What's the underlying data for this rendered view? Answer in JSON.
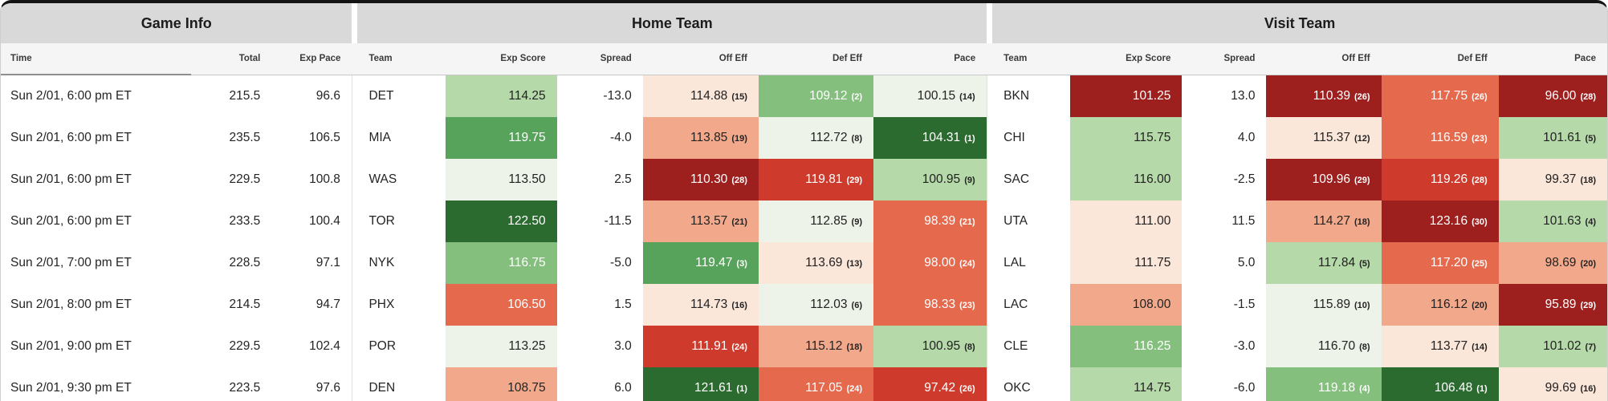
{
  "table": {
    "groups": [
      {
        "label": "Game Info"
      },
      {
        "label": "Home Team"
      },
      {
        "label": "Visit Team"
      }
    ],
    "subheaders": {
      "game": [
        "Time",
        "Total",
        "Exp Pace"
      ],
      "team": [
        "Team",
        "Exp Score",
        "Spread",
        "Off Eff",
        "Def Eff",
        "Pace"
      ]
    },
    "colors": {
      "g0": "#edf3e8",
      "g1": "#b5d9a9",
      "g2": "#85bf7e",
      "g3": "#57a35b",
      "g4": "#2c6b30",
      "r0": "#fbe6da",
      "r1": "#f2a98b",
      "r2": "#e56a4d",
      "r3": "#ce3b2d",
      "r4": "#9d1f1e",
      "header_band": "#d9d9d9",
      "subheader_band": "#f5f5f5",
      "top_bar": "#141414"
    },
    "rows": [
      {
        "time": "Sun 2/01, 6:00 pm ET",
        "total": "215.5",
        "exp_pace": "96.6",
        "home": {
          "team": "DET",
          "exp_score": {
            "value": "114.25",
            "bg": "g1",
            "text": "dark"
          },
          "spread": "-13.0",
          "off_eff": {
            "value": "114.88",
            "rank": "15",
            "bg": "r0",
            "text": "dark"
          },
          "def_eff": {
            "value": "109.12",
            "rank": "2",
            "bg": "g2",
            "text": "light"
          },
          "pace": {
            "value": "100.15",
            "rank": "14",
            "bg": "g0",
            "text": "dark"
          }
        },
        "visit": {
          "team": "BKN",
          "exp_score": {
            "value": "101.25",
            "bg": "r4",
            "text": "light"
          },
          "spread": "13.0",
          "off_eff": {
            "value": "110.39",
            "rank": "26",
            "bg": "r4",
            "text": "light"
          },
          "def_eff": {
            "value": "117.75",
            "rank": "26",
            "bg": "r2",
            "text": "light"
          },
          "pace": {
            "value": "96.00",
            "rank": "28",
            "bg": "r4",
            "text": "light"
          }
        }
      },
      {
        "time": "Sun 2/01, 6:00 pm ET",
        "total": "235.5",
        "exp_pace": "106.5",
        "home": {
          "team": "MIA",
          "exp_score": {
            "value": "119.75",
            "bg": "g3",
            "text": "light"
          },
          "spread": "-4.0",
          "off_eff": {
            "value": "113.85",
            "rank": "19",
            "bg": "r1",
            "text": "dark"
          },
          "def_eff": {
            "value": "112.72",
            "rank": "8",
            "bg": "g0",
            "text": "dark"
          },
          "pace": {
            "value": "104.31",
            "rank": "1",
            "bg": "g4",
            "text": "light"
          }
        },
        "visit": {
          "team": "CHI",
          "exp_score": {
            "value": "115.75",
            "bg": "g1",
            "text": "dark"
          },
          "spread": "4.0",
          "off_eff": {
            "value": "115.37",
            "rank": "12",
            "bg": "r0",
            "text": "dark"
          },
          "def_eff": {
            "value": "116.59",
            "rank": "23",
            "bg": "r2",
            "text": "light"
          },
          "pace": {
            "value": "101.61",
            "rank": "5",
            "bg": "g1",
            "text": "dark"
          }
        }
      },
      {
        "time": "Sun 2/01, 6:00 pm ET",
        "total": "229.5",
        "exp_pace": "100.8",
        "home": {
          "team": "WAS",
          "exp_score": {
            "value": "113.50",
            "bg": "g0",
            "text": "dark"
          },
          "spread": "2.5",
          "off_eff": {
            "value": "110.30",
            "rank": "28",
            "bg": "r4",
            "text": "light"
          },
          "def_eff": {
            "value": "119.81",
            "rank": "29",
            "bg": "r3",
            "text": "light"
          },
          "pace": {
            "value": "100.95",
            "rank": "9",
            "bg": "g1",
            "text": "dark"
          }
        },
        "visit": {
          "team": "SAC",
          "exp_score": {
            "value": "116.00",
            "bg": "g1",
            "text": "dark"
          },
          "spread": "-2.5",
          "off_eff": {
            "value": "109.96",
            "rank": "29",
            "bg": "r4",
            "text": "light"
          },
          "def_eff": {
            "value": "119.26",
            "rank": "28",
            "bg": "r3",
            "text": "light"
          },
          "pace": {
            "value": "99.37",
            "rank": "18",
            "bg": "r0",
            "text": "dark"
          }
        }
      },
      {
        "time": "Sun 2/01, 6:00 pm ET",
        "total": "233.5",
        "exp_pace": "100.4",
        "home": {
          "team": "TOR",
          "exp_score": {
            "value": "122.50",
            "bg": "g4",
            "text": "light"
          },
          "spread": "-11.5",
          "off_eff": {
            "value": "113.57",
            "rank": "21",
            "bg": "r1",
            "text": "dark"
          },
          "def_eff": {
            "value": "112.85",
            "rank": "9",
            "bg": "g0",
            "text": "dark"
          },
          "pace": {
            "value": "98.39",
            "rank": "21",
            "bg": "r2",
            "text": "light"
          }
        },
        "visit": {
          "team": "UTA",
          "exp_score": {
            "value": "111.00",
            "bg": "r0",
            "text": "dark"
          },
          "spread": "11.5",
          "off_eff": {
            "value": "114.27",
            "rank": "18",
            "bg": "r1",
            "text": "dark"
          },
          "def_eff": {
            "value": "123.16",
            "rank": "30",
            "bg": "r4",
            "text": "light"
          },
          "pace": {
            "value": "101.63",
            "rank": "4",
            "bg": "g1",
            "text": "dark"
          }
        }
      },
      {
        "time": "Sun 2/01, 7:00 pm ET",
        "total": "228.5",
        "exp_pace": "97.1",
        "home": {
          "team": "NYK",
          "exp_score": {
            "value": "116.75",
            "bg": "g2",
            "text": "light"
          },
          "spread": "-5.0",
          "off_eff": {
            "value": "119.47",
            "rank": "3",
            "bg": "g3",
            "text": "light"
          },
          "def_eff": {
            "value": "113.69",
            "rank": "13",
            "bg": "r0",
            "text": "dark"
          },
          "pace": {
            "value": "98.00",
            "rank": "24",
            "bg": "r2",
            "text": "light"
          }
        },
        "visit": {
          "team": "LAL",
          "exp_score": {
            "value": "111.75",
            "bg": "r0",
            "text": "dark"
          },
          "spread": "5.0",
          "off_eff": {
            "value": "117.84",
            "rank": "5",
            "bg": "g1",
            "text": "dark"
          },
          "def_eff": {
            "value": "117.20",
            "rank": "25",
            "bg": "r2",
            "text": "light"
          },
          "pace": {
            "value": "98.69",
            "rank": "20",
            "bg": "r1",
            "text": "dark"
          }
        }
      },
      {
        "time": "Sun 2/01, 8:00 pm ET",
        "total": "214.5",
        "exp_pace": "94.7",
        "home": {
          "team": "PHX",
          "exp_score": {
            "value": "106.50",
            "bg": "r2",
            "text": "light"
          },
          "spread": "1.5",
          "off_eff": {
            "value": "114.73",
            "rank": "16",
            "bg": "r0",
            "text": "dark"
          },
          "def_eff": {
            "value": "112.03",
            "rank": "6",
            "bg": "g0",
            "text": "dark"
          },
          "pace": {
            "value": "98.33",
            "rank": "23",
            "bg": "r2",
            "text": "light"
          }
        },
        "visit": {
          "team": "LAC",
          "exp_score": {
            "value": "108.00",
            "bg": "r1",
            "text": "dark"
          },
          "spread": "-1.5",
          "off_eff": {
            "value": "115.89",
            "rank": "10",
            "bg": "g0",
            "text": "dark"
          },
          "def_eff": {
            "value": "116.12",
            "rank": "20",
            "bg": "r1",
            "text": "dark"
          },
          "pace": {
            "value": "95.89",
            "rank": "29",
            "bg": "r4",
            "text": "light"
          }
        }
      },
      {
        "time": "Sun 2/01, 9:00 pm ET",
        "total": "229.5",
        "exp_pace": "102.4",
        "home": {
          "team": "POR",
          "exp_score": {
            "value": "113.25",
            "bg": "g0",
            "text": "dark"
          },
          "spread": "3.0",
          "off_eff": {
            "value": "111.91",
            "rank": "24",
            "bg": "r3",
            "text": "light"
          },
          "def_eff": {
            "value": "115.12",
            "rank": "18",
            "bg": "r1",
            "text": "dark"
          },
          "pace": {
            "value": "100.95",
            "rank": "8",
            "bg": "g1",
            "text": "dark"
          }
        },
        "visit": {
          "team": "CLE",
          "exp_score": {
            "value": "116.25",
            "bg": "g2",
            "text": "light"
          },
          "spread": "-3.0",
          "off_eff": {
            "value": "116.70",
            "rank": "8",
            "bg": "g0",
            "text": "dark"
          },
          "def_eff": {
            "value": "113.77",
            "rank": "14",
            "bg": "r0",
            "text": "dark"
          },
          "pace": {
            "value": "101.02",
            "rank": "7",
            "bg": "g1",
            "text": "dark"
          }
        }
      },
      {
        "time": "Sun 2/01, 9:30 pm ET",
        "total": "223.5",
        "exp_pace": "97.6",
        "home": {
          "team": "DEN",
          "exp_score": {
            "value": "108.75",
            "bg": "r1",
            "text": "dark"
          },
          "spread": "6.0",
          "off_eff": {
            "value": "121.61",
            "rank": "1",
            "bg": "g4",
            "text": "light"
          },
          "def_eff": {
            "value": "117.05",
            "rank": "24",
            "bg": "r2",
            "text": "light"
          },
          "pace": {
            "value": "97.42",
            "rank": "26",
            "bg": "r3",
            "text": "light"
          }
        },
        "visit": {
          "team": "OKC",
          "exp_score": {
            "value": "114.75",
            "bg": "g1",
            "text": "dark"
          },
          "spread": "-6.0",
          "off_eff": {
            "value": "119.18",
            "rank": "4",
            "bg": "g2",
            "text": "light"
          },
          "def_eff": {
            "value": "106.48",
            "rank": "1",
            "bg": "g4",
            "text": "light"
          },
          "pace": {
            "value": "99.69",
            "rank": "16",
            "bg": "r0",
            "text": "dark"
          }
        }
      }
    ]
  }
}
